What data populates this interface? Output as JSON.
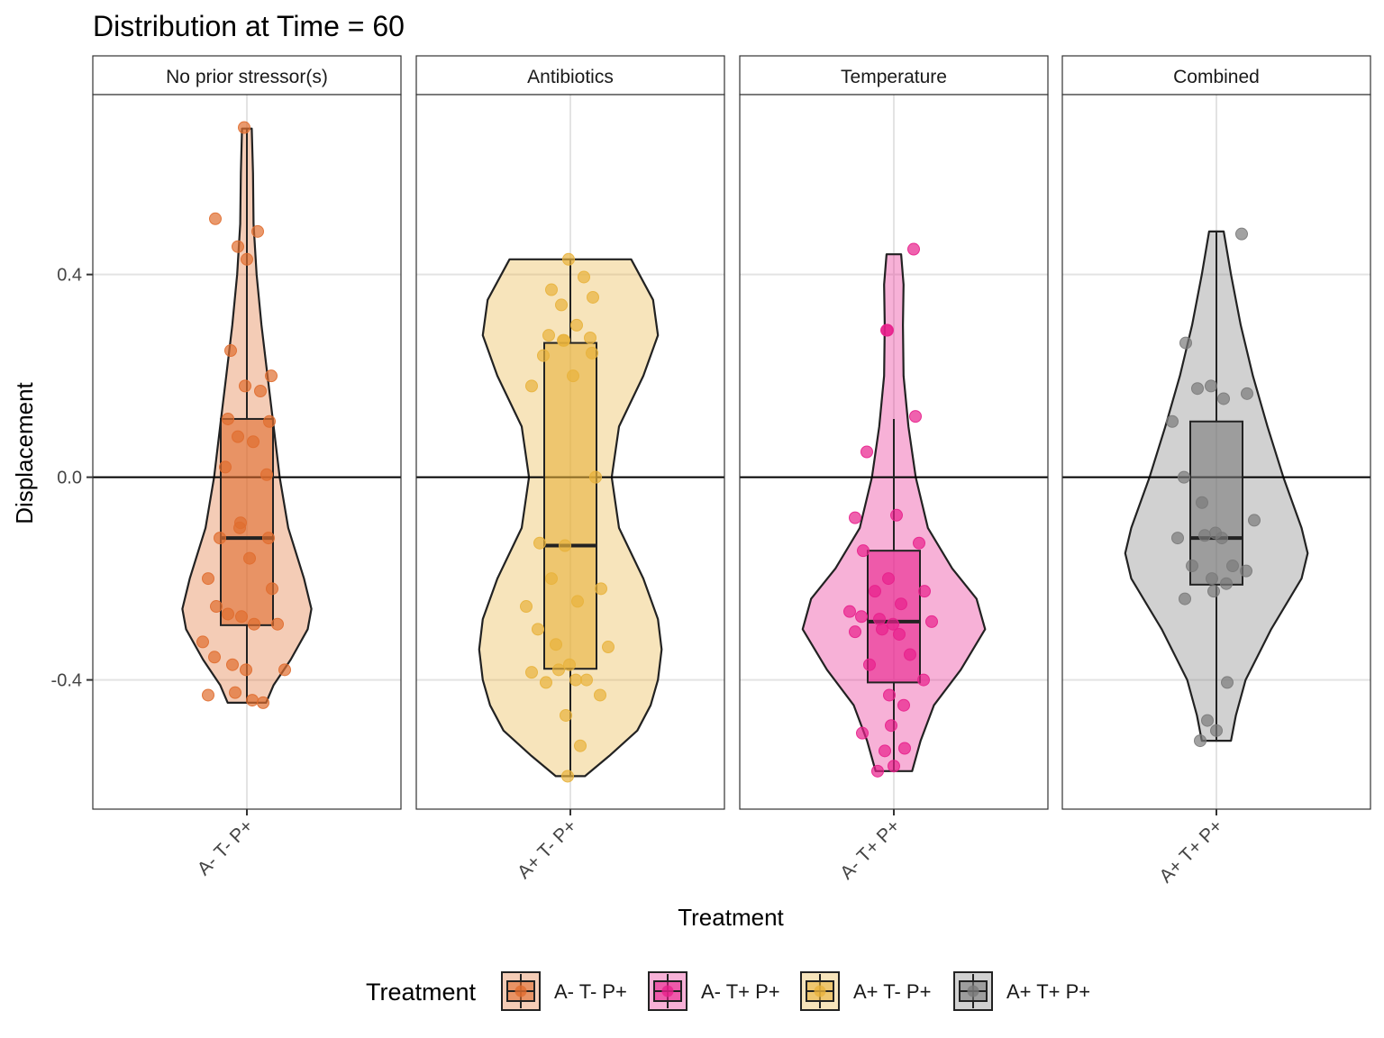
{
  "chart_data": {
    "type": "violin",
    "title": "Distribution at Time = 60",
    "xlabel": "Treatment",
    "ylabel": "Displacement",
    "ylim": [
      -0.655,
      0.755
    ],
    "yticks": [
      {
        "value": -0.4,
        "label": "-0.4"
      },
      {
        "value": 0.0,
        "label": "0.0"
      },
      {
        "value": 0.4,
        "label": "0.4"
      }
    ],
    "reference_line": 0,
    "grid": true,
    "legend_title": "Treatment",
    "legend_position": "bottom",
    "legend": [
      {
        "label": "A- T- P+",
        "color": "#E06D2F"
      },
      {
        "label": "A- T+ P+",
        "color": "#E8208C"
      },
      {
        "label": "A+ T- P+",
        "color": "#E8B23C"
      },
      {
        "label": "A+ T+ P+",
        "color": "#7A7A7A"
      }
    ],
    "panels": [
      {
        "strip": "No prior stressor(s)",
        "category": "A- T- P+",
        "color": "#E06D2F",
        "box": {
          "whisker_low": -0.445,
          "q1": -0.292,
          "median": -0.12,
          "q3": 0.115,
          "whisker_high": 0.688
        },
        "violin_profile": [
          [
            -0.445,
            0.158
          ],
          [
            -0.41,
            0.22
          ],
          [
            -0.36,
            0.36
          ],
          [
            -0.3,
            0.5
          ],
          [
            -0.26,
            0.53
          ],
          [
            -0.2,
            0.47
          ],
          [
            -0.1,
            0.34
          ],
          [
            0.0,
            0.27
          ],
          [
            0.1,
            0.22
          ],
          [
            0.2,
            0.17
          ],
          [
            0.3,
            0.12
          ],
          [
            0.4,
            0.08
          ],
          [
            0.5,
            0.055
          ],
          [
            0.6,
            0.05
          ],
          [
            0.688,
            0.04
          ]
        ],
        "points": [
          0.69,
          0.51,
          0.485,
          0.455,
          0.43,
          0.25,
          0.2,
          0.18,
          0.17,
          0.115,
          0.11,
          0.08,
          0.07,
          0.02,
          0.005,
          -0.09,
          -0.1,
          -0.12,
          -0.12,
          -0.16,
          -0.2,
          -0.22,
          -0.255,
          -0.275,
          -0.27,
          -0.29,
          -0.29,
          -0.325,
          -0.355,
          -0.37,
          -0.38,
          -0.38,
          -0.425,
          -0.43,
          -0.44,
          -0.445
        ]
      },
      {
        "strip": "Antibiotics",
        "category": "A+ T- P+",
        "color": "#E8B23C",
        "box": {
          "whisker_low": -0.59,
          "q1": -0.378,
          "median": -0.135,
          "q3": 0.265,
          "whisker_high": 0.43
        },
        "violin_profile": [
          [
            -0.59,
            0.12
          ],
          [
            -0.55,
            0.32
          ],
          [
            -0.5,
            0.55
          ],
          [
            -0.45,
            0.66
          ],
          [
            -0.4,
            0.72
          ],
          [
            -0.34,
            0.75
          ],
          [
            -0.28,
            0.72
          ],
          [
            -0.2,
            0.6
          ],
          [
            -0.1,
            0.4
          ],
          [
            0.0,
            0.34
          ],
          [
            0.1,
            0.4
          ],
          [
            0.2,
            0.6
          ],
          [
            0.28,
            0.72
          ],
          [
            0.35,
            0.68
          ],
          [
            0.43,
            0.5
          ]
        ],
        "points": [
          0.43,
          0.395,
          0.37,
          0.355,
          0.34,
          0.3,
          0.28,
          0.275,
          0.27,
          0.27,
          0.245,
          0.24,
          0.2,
          0.18,
          0.0,
          -0.13,
          -0.135,
          -0.2,
          -0.22,
          -0.245,
          -0.255,
          -0.3,
          -0.33,
          -0.335,
          -0.37,
          -0.38,
          -0.385,
          -0.4,
          -0.4,
          -0.405,
          -0.43,
          -0.47,
          -0.53,
          -0.59
        ]
      },
      {
        "strip": "Temperature",
        "category": "A- T+ P+",
        "color": "#E8208C",
        "box": {
          "whisker_low": -0.58,
          "q1": -0.405,
          "median": -0.285,
          "q3": -0.145,
          "whisker_high": 0.115
        },
        "violin_profile": [
          [
            -0.58,
            0.15
          ],
          [
            -0.52,
            0.22
          ],
          [
            -0.45,
            0.33
          ],
          [
            -0.38,
            0.55
          ],
          [
            -0.3,
            0.75
          ],
          [
            -0.24,
            0.68
          ],
          [
            -0.18,
            0.48
          ],
          [
            -0.1,
            0.28
          ],
          [
            0.0,
            0.18
          ],
          [
            0.1,
            0.12
          ],
          [
            0.2,
            0.08
          ],
          [
            0.3,
            0.075
          ],
          [
            0.38,
            0.08
          ],
          [
            0.44,
            0.06
          ]
        ],
        "points": [
          0.45,
          0.29,
          0.29,
          0.12,
          0.05,
          -0.075,
          -0.08,
          -0.13,
          -0.145,
          -0.2,
          -0.225,
          -0.225,
          -0.25,
          -0.265,
          -0.275,
          -0.28,
          -0.285,
          -0.29,
          -0.3,
          -0.305,
          -0.31,
          -0.35,
          -0.37,
          -0.4,
          -0.43,
          -0.45,
          -0.49,
          -0.505,
          -0.535,
          -0.54,
          -0.57,
          -0.58
        ]
      },
      {
        "strip": "Combined",
        "category": "A+ T+ P+",
        "color": "#7A7A7A",
        "box": {
          "whisker_low": -0.52,
          "q1": -0.212,
          "median": -0.12,
          "q3": 0.11,
          "whisker_high": 0.485
        },
        "violin_profile": [
          [
            -0.52,
            0.12
          ],
          [
            -0.47,
            0.16
          ],
          [
            -0.4,
            0.24
          ],
          [
            -0.3,
            0.45
          ],
          [
            -0.2,
            0.7
          ],
          [
            -0.15,
            0.75
          ],
          [
            -0.1,
            0.7
          ],
          [
            0.0,
            0.55
          ],
          [
            0.1,
            0.42
          ],
          [
            0.2,
            0.3
          ],
          [
            0.3,
            0.2
          ],
          [
            0.4,
            0.12
          ],
          [
            0.485,
            0.06
          ]
        ],
        "points": [
          0.48,
          0.265,
          0.18,
          0.175,
          0.165,
          0.155,
          0.11,
          0.0,
          -0.05,
          -0.085,
          -0.11,
          -0.115,
          -0.12,
          -0.12,
          -0.175,
          -0.175,
          -0.185,
          -0.2,
          -0.21,
          -0.225,
          -0.24,
          -0.405,
          -0.48,
          -0.5,
          -0.52
        ]
      }
    ]
  }
}
